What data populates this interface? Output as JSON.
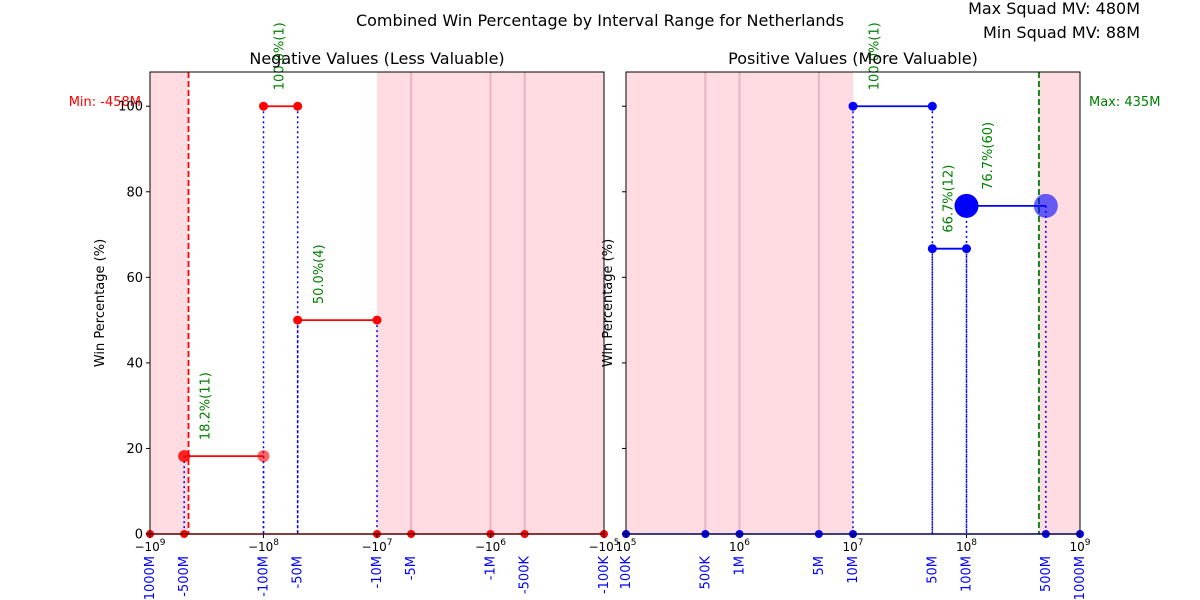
{
  "figure": {
    "title": "Combined Win Percentage by Interval Range for Netherlands",
    "max_squad": "Max Squad MV: 480M",
    "min_squad": "Min Squad MV: 88M"
  },
  "colors": {
    "red": "#ff0000",
    "blue": "#0000ff",
    "green": "#008000",
    "shade": "#ffc0cb"
  },
  "chart_data": [
    {
      "type": "line",
      "title": "Negative Values (Less Valuable)",
      "ylabel": "Win Percentage (%)",
      "xscale": "symlog",
      "xlim": [
        -1000000000,
        -100000
      ],
      "ylim": [
        0,
        108
      ],
      "yticks": [
        0,
        20,
        40,
        60,
        80,
        100
      ],
      "xticks_major": [
        {
          "value": -1000000000,
          "label": "−10^9"
        },
        {
          "value": -100000000,
          "label": "−10^8"
        },
        {
          "value": -10000000,
          "label": "−10^7"
        },
        {
          "value": -1000000,
          "label": "−10^6"
        },
        {
          "value": -100000,
          "label": "−10^5"
        }
      ],
      "xticks_custom": [
        {
          "value": -1000000000,
          "label": "-1000M"
        },
        {
          "value": -500000000,
          "label": "-500M"
        },
        {
          "value": -100000000,
          "label": "-100M"
        },
        {
          "value": -50000000,
          "label": "-50M"
        },
        {
          "value": -10000000,
          "label": "-10M"
        },
        {
          "value": -5000000,
          "label": "-5M"
        },
        {
          "value": -1000000,
          "label": "-1M"
        },
        {
          "value": -500000,
          "label": "-500K"
        },
        {
          "value": -100000,
          "label": "-100K"
        }
      ],
      "shaded": [
        [
          -1000000000,
          -458000000
        ],
        [
          -10000000,
          -100000
        ]
      ],
      "vlines": [
        -5000000,
        -1000000,
        -500000
      ],
      "ref_line": {
        "value": -458000000,
        "label": "Min: -458M",
        "color": "red"
      },
      "segments": [
        {
          "x1": -500000000,
          "x2": -100000000,
          "y": 18.2,
          "label": "18.2%(11)",
          "big_start": true,
          "big_end": true
        },
        {
          "x1": -100000000,
          "x2": -50000000,
          "y": 100.0,
          "label": "100.0%(1)",
          "big_start": false,
          "big_end": false
        },
        {
          "x1": -50000000,
          "x2": -10000000,
          "y": 50.0,
          "label": "50.0%(4)",
          "big_start": false,
          "big_end": false
        }
      ],
      "zero_points": [
        -1000000000,
        -500000000,
        -10000000,
        -5000000,
        -1000000,
        -500000,
        -100000
      ]
    },
    {
      "type": "line",
      "title": "Positive Values (More Valuable)",
      "ylabel": "Win Percentage (%)",
      "xscale": "symlog",
      "xlim": [
        100000,
        1000000000
      ],
      "ylim": [
        0,
        108
      ],
      "yticks": [
        0,
        20,
        40,
        60,
        80,
        100
      ],
      "xticks_major": [
        {
          "value": 100000,
          "label": "10^5"
        },
        {
          "value": 1000000,
          "label": "10^6"
        },
        {
          "value": 10000000,
          "label": "10^7"
        },
        {
          "value": 100000000,
          "label": "10^8"
        },
        {
          "value": 1000000000,
          "label": "10^9"
        }
      ],
      "xticks_custom": [
        {
          "value": 100000,
          "label": "100K"
        },
        {
          "value": 500000,
          "label": "500K"
        },
        {
          "value": 1000000,
          "label": "1M"
        },
        {
          "value": 5000000,
          "label": "5M"
        },
        {
          "value": 10000000,
          "label": "10M"
        },
        {
          "value": 50000000,
          "label": "50M"
        },
        {
          "value": 100000000,
          "label": "100M"
        },
        {
          "value": 500000000,
          "label": "500M"
        },
        {
          "value": 1000000000,
          "label": "1000M"
        }
      ],
      "shaded": [
        [
          100000,
          10000000
        ],
        [
          435000000,
          1000000000
        ]
      ],
      "vlines": [
        500000,
        1000000,
        5000000
      ],
      "ref_line": {
        "value": 435000000,
        "label": "Max: 435M",
        "color": "green"
      },
      "segments": [
        {
          "x1": 10000000,
          "x2": 50000000,
          "y": 100.0,
          "label": "100.0%(1)",
          "big_start": false,
          "big_end": false
        },
        {
          "x1": 50000000,
          "x2": 100000000,
          "y": 66.7,
          "label": "66.7%(12)",
          "big_start": false,
          "big_end": false
        },
        {
          "x1": 100000000,
          "x2": 500000000,
          "y": 76.7,
          "label": "76.7%(60)",
          "big_start": true,
          "big_end": true
        }
      ],
      "zero_points": [
        100000,
        500000,
        1000000,
        5000000,
        10000000,
        500000000,
        1000000000
      ]
    }
  ]
}
